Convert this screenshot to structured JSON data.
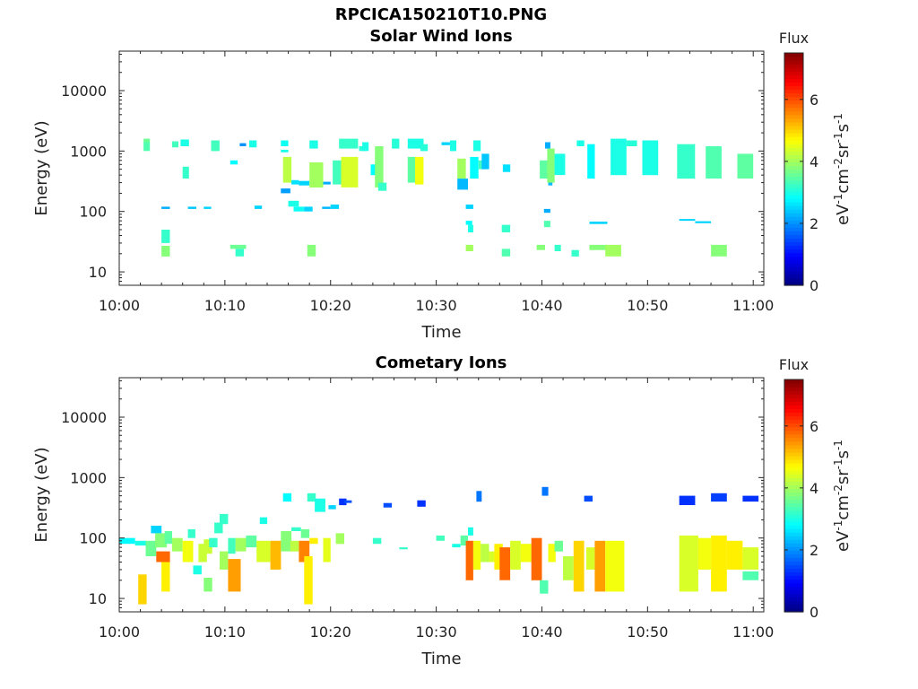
{
  "figure": {
    "title": "RPCICA150210T10.PNG"
  },
  "chart_data": [
    {
      "type": "heatmap",
      "title": "Solar Wind Ions",
      "xlabel": "Time",
      "ylabel": "Energy (eV)",
      "x_range_minutes": [
        0,
        61
      ],
      "x_ticks": [
        "10:00",
        "10:10",
        "10:20",
        "10:30",
        "10:40",
        "10:50",
        "11:00"
      ],
      "y_scale": "log",
      "ylim": [
        6,
        45000
      ],
      "y_ticks": [
        "10",
        "100",
        "1000",
        "10000"
      ],
      "colorbar": {
        "label": "Flux",
        "units": "eV-1cm-2sr-1s-1",
        "range": [
          0,
          7.5
        ],
        "ticks": [
          "0",
          "2",
          "4",
          "6"
        ],
        "colormap": "jet"
      },
      "cells": [
        [
          2.3,
          2.9,
          1400,
          1600,
          3.6
        ],
        [
          2.3,
          2.9,
          1000,
          1400,
          3.4
        ],
        [
          5.0,
          5.6,
          1150,
          1450,
          3.3
        ],
        [
          5.8,
          6.6,
          1200,
          1550,
          3.0
        ],
        [
          6.0,
          6.6,
          350,
          550,
          3.2
        ],
        [
          8.7,
          9.5,
          1000,
          1500,
          3.3
        ],
        [
          10.5,
          11.2,
          600,
          700,
          2.8
        ],
        [
          11.4,
          12.0,
          1200,
          1350,
          2.0
        ],
        [
          12.3,
          13.0,
          1150,
          1500,
          3.0
        ],
        [
          15.3,
          16.0,
          1200,
          1500,
          2.9
        ],
        [
          15.3,
          16.0,
          950,
          1050,
          3.0
        ],
        [
          15.5,
          16.3,
          300,
          800,
          4.2
        ],
        [
          15.3,
          16.2,
          200,
          240,
          2.1
        ],
        [
          16.3,
          17.0,
          280,
          330,
          2.6
        ],
        [
          17.0,
          18.0,
          270,
          320,
          2.5
        ],
        [
          18.0,
          19.3,
          250,
          650,
          4.0
        ],
        [
          19.3,
          20.0,
          280,
          310,
          2.2
        ],
        [
          18.0,
          18.8,
          1100,
          1500,
          3.0
        ],
        [
          20.2,
          21.0,
          280,
          700,
          3.3
        ],
        [
          21.0,
          22.6,
          250,
          800,
          4.4
        ],
        [
          20.8,
          22.6,
          1100,
          1600,
          3.2
        ],
        [
          22.7,
          23.3,
          1000,
          1200,
          3.1
        ],
        [
          23.0,
          23.6,
          1000,
          1400,
          3.0
        ],
        [
          23.8,
          24.6,
          400,
          600,
          2.8
        ],
        [
          24.2,
          25.0,
          250,
          1200,
          3.8
        ],
        [
          24.5,
          25.3,
          220,
          300,
          3.2
        ],
        [
          25.8,
          26.5,
          1100,
          1600,
          3.1
        ],
        [
          27.3,
          28.0,
          300,
          800,
          3.5
        ],
        [
          28.0,
          28.8,
          280,
          800,
          4.6
        ],
        [
          27.3,
          28.8,
          1100,
          1600,
          3.0
        ],
        [
          28.5,
          29.2,
          1000,
          1300,
          3.1
        ],
        [
          30.5,
          31.3,
          1250,
          1400,
          2.5
        ],
        [
          31.3,
          31.9,
          1000,
          1500,
          3.0
        ],
        [
          32.0,
          32.8,
          350,
          750,
          4.0
        ],
        [
          32.0,
          33.0,
          230,
          350,
          2.3
        ],
        [
          33.2,
          34.0,
          350,
          800,
          2.8
        ],
        [
          33.5,
          34.2,
          1000,
          1500,
          3.0
        ],
        [
          34.0,
          34.6,
          500,
          700,
          3.3
        ],
        [
          34.3,
          35.0,
          500,
          900,
          2.4
        ],
        [
          36.3,
          37.0,
          450,
          600,
          2.6
        ],
        [
          39.8,
          40.6,
          350,
          700,
          3.5
        ],
        [
          40.3,
          40.8,
          1100,
          1400,
          2.2
        ],
        [
          40.6,
          41.0,
          270,
          330,
          2.3
        ],
        [
          40.5,
          41.2,
          300,
          1100,
          3.8
        ],
        [
          41.2,
          42.2,
          400,
          900,
          3.0
        ],
        [
          43.3,
          44.0,
          1200,
          1500,
          3.0
        ],
        [
          44.3,
          45.0,
          350,
          1300,
          2.8
        ],
        [
          46.5,
          48.0,
          400,
          1600,
          3.0
        ],
        [
          48.0,
          49.0,
          1200,
          1500,
          3.1
        ],
        [
          49.5,
          51.0,
          400,
          1500,
          3.0
        ],
        [
          52.8,
          54.5,
          350,
          1300,
          3.2
        ],
        [
          55.5,
          57.0,
          350,
          1200,
          3.4
        ],
        [
          58.5,
          60.0,
          350,
          900,
          3.5
        ],
        [
          4.0,
          4.8,
          110,
          120,
          2.2
        ],
        [
          6.5,
          7.3,
          110,
          120,
          2.4
        ],
        [
          8.0,
          8.7,
          110,
          120,
          2.5
        ],
        [
          12.8,
          13.5,
          110,
          125,
          2.5
        ],
        [
          16.0,
          17.0,
          120,
          150,
          3.0
        ],
        [
          16.5,
          17.5,
          100,
          120,
          2.9
        ],
        [
          17.5,
          18.3,
          100,
          120,
          2.5
        ],
        [
          19.2,
          20.0,
          110,
          120,
          2.3
        ],
        [
          20.0,
          20.8,
          110,
          130,
          2.5
        ],
        [
          32.8,
          33.5,
          110,
          130,
          2.5
        ],
        [
          40.2,
          40.8,
          95,
          110,
          2.2
        ],
        [
          44.5,
          46.2,
          62,
          68,
          2.5
        ],
        [
          53.0,
          54.5,
          70,
          75,
          2.5
        ],
        [
          54.5,
          56.0,
          64,
          69,
          2.5
        ],
        [
          4.0,
          4.8,
          30,
          50,
          3.2
        ],
        [
          33.0,
          33.5,
          45,
          60,
          3.0
        ],
        [
          32.8,
          33.4,
          60,
          70,
          2.8
        ],
        [
          36.2,
          37.0,
          45,
          60,
          3.2
        ],
        [
          40.2,
          40.8,
          55,
          70,
          3.4
        ],
        [
          4.0,
          4.8,
          18,
          27,
          3.8
        ],
        [
          10.5,
          12.0,
          24,
          28,
          3.6
        ],
        [
          11.0,
          11.8,
          18,
          24,
          3.2
        ],
        [
          17.8,
          18.6,
          18,
          28,
          3.8
        ],
        [
          32.8,
          33.5,
          22,
          28,
          4.0
        ],
        [
          36.2,
          37.0,
          18,
          24,
          3.4
        ],
        [
          39.5,
          40.3,
          23,
          28,
          3.8
        ],
        [
          41.2,
          41.8,
          22,
          28,
          3.2
        ],
        [
          42.8,
          43.5,
          18,
          23,
          3.2
        ],
        [
          44.5,
          46.2,
          23,
          28,
          3.8
        ],
        [
          46.0,
          47.5,
          18,
          28,
          4.0
        ],
        [
          56.0,
          57.5,
          18,
          28,
          3.8
        ]
      ]
    },
    {
      "type": "heatmap",
      "title": "Cometary Ions",
      "xlabel": "Time",
      "ylabel": "Energy (eV)",
      "x_range_minutes": [
        0,
        61
      ],
      "x_ticks": [
        "10:00",
        "10:10",
        "10:20",
        "10:30",
        "10:40",
        "10:50",
        "11:00"
      ],
      "y_scale": "log",
      "ylim": [
        6,
        45000
      ],
      "y_ticks": [
        "10",
        "100",
        "1000",
        "10000"
      ],
      "colorbar": {
        "label": "Flux",
        "units": "eV-1cm-2sr-1s-1",
        "range": [
          0,
          7.5
        ],
        "ticks": [
          "0",
          "2",
          "4",
          "6"
        ],
        "colormap": "jet"
      },
      "cells": [
        [
          0.0,
          1.5,
          80,
          100,
          2.8
        ],
        [
          1.5,
          2.5,
          75,
          90,
          3.0
        ],
        [
          1.8,
          2.6,
          8,
          25,
          5.0
        ],
        [
          2.5,
          3.5,
          50,
          90,
          3.6
        ],
        [
          3.0,
          4.0,
          120,
          160,
          2.5
        ],
        [
          3.4,
          4.5,
          70,
          120,
          3.8
        ],
        [
          3.5,
          4.8,
          40,
          60,
          5.8
        ],
        [
          4.0,
          4.8,
          13,
          40,
          4.8
        ],
        [
          4.3,
          5.0,
          80,
          130,
          3.5
        ],
        [
          5.0,
          6.0,
          60,
          100,
          4.0
        ],
        [
          6.0,
          7.0,
          40,
          90,
          4.6
        ],
        [
          6.5,
          7.2,
          100,
          140,
          3.2
        ],
        [
          7.0,
          7.8,
          25,
          35,
          3.0
        ],
        [
          7.5,
          8.3,
          40,
          80,
          4.3
        ],
        [
          8.0,
          8.8,
          55,
          95,
          4.3
        ],
        [
          8.0,
          8.8,
          13,
          22,
          3.8
        ],
        [
          8.5,
          9.3,
          70,
          100,
          3.2
        ],
        [
          9.0,
          9.8,
          120,
          180,
          3.2
        ],
        [
          9.5,
          10.3,
          30,
          60,
          4.0
        ],
        [
          10.3,
          11.0,
          55,
          100,
          3.3
        ],
        [
          9.5,
          10.3,
          170,
          250,
          3.2
        ],
        [
          10.3,
          11.5,
          13,
          45,
          5.4
        ],
        [
          11.0,
          12.0,
          60,
          100,
          4.0
        ],
        [
          12.0,
          13.0,
          70,
          110,
          3.5
        ],
        [
          13.0,
          14.3,
          40,
          90,
          4.4
        ],
        [
          13.3,
          14.0,
          170,
          220,
          3.0
        ],
        [
          14.3,
          15.3,
          30,
          90,
          5.2
        ],
        [
          15.3,
          16.3,
          60,
          130,
          3.8
        ],
        [
          15.5,
          16.3,
          400,
          550,
          2.8
        ],
        [
          16.2,
          17.0,
          60,
          90,
          4.2
        ],
        [
          16.3,
          17.2,
          130,
          150,
          3.2
        ],
        [
          17.0,
          18.0,
          40,
          90,
          5.6
        ],
        [
          17.2,
          18.0,
          100,
          140,
          3.6
        ],
        [
          17.5,
          18.3,
          8,
          50,
          4.8
        ],
        [
          17.8,
          18.6,
          400,
          550,
          3.2
        ],
        [
          18.0,
          18.8,
          80,
          100,
          4.8
        ],
        [
          18.5,
          19.5,
          270,
          450,
          3.0
        ],
        [
          19.3,
          20.0,
          40,
          100,
          4.5
        ],
        [
          19.8,
          20.5,
          300,
          350,
          2.5
        ],
        [
          20.5,
          21.3,
          80,
          120,
          4.0
        ],
        [
          20.8,
          21.5,
          350,
          450,
          1.3
        ],
        [
          21.3,
          22.0,
          380,
          420,
          1.5
        ],
        [
          25.0,
          25.8,
          320,
          380,
          1.5
        ],
        [
          28.2,
          29.0,
          330,
          420,
          1.3
        ],
        [
          24.0,
          24.8,
          80,
          100,
          3.2
        ],
        [
          26.5,
          27.3,
          65,
          70,
          3.2
        ],
        [
          30.0,
          30.8,
          90,
          110,
          3.3
        ],
        [
          31.5,
          32.3,
          70,
          80,
          3.0
        ],
        [
          32.3,
          33.0,
          75,
          110,
          3.5
        ],
        [
          32.8,
          33.5,
          20,
          90,
          5.8
        ],
        [
          33.0,
          33.5,
          110,
          150,
          3.0
        ],
        [
          33.5,
          34.2,
          30,
          90,
          4.6
        ],
        [
          33.8,
          34.3,
          400,
          600,
          1.8
        ],
        [
          34.2,
          35.0,
          40,
          80,
          4.2
        ],
        [
          35.0,
          35.8,
          40,
          60,
          4.4
        ],
        [
          35.5,
          36.3,
          30,
          80,
          4.8
        ],
        [
          36.0,
          37.0,
          20,
          70,
          5.8
        ],
        [
          37.0,
          38.0,
          30,
          90,
          4.4
        ],
        [
          38.0,
          39.0,
          40,
          80,
          4.6
        ],
        [
          39.0,
          40.0,
          20,
          100,
          5.8
        ],
        [
          39.8,
          40.6,
          12,
          20,
          3.4
        ],
        [
          40.0,
          40.6,
          500,
          700,
          1.8
        ],
        [
          40.6,
          41.3,
          40,
          80,
          4.6
        ],
        [
          41.2,
          42.0,
          60,
          90,
          3.6
        ],
        [
          42.0,
          43.0,
          20,
          50,
          4.2
        ],
        [
          43.0,
          44.0,
          13,
          90,
          5.0
        ],
        [
          44.0,
          44.8,
          400,
          500,
          1.5
        ],
        [
          44.2,
          45.0,
          30,
          70,
          4.4
        ],
        [
          45.0,
          46.0,
          13,
          90,
          5.4
        ],
        [
          46.0,
          47.8,
          13,
          90,
          4.6
        ],
        [
          53.0,
          54.5,
          350,
          500,
          1.3
        ],
        [
          53.0,
          54.8,
          13,
          110,
          4.4
        ],
        [
          54.8,
          56.0,
          30,
          100,
          4.6
        ],
        [
          56.0,
          57.5,
          13,
          110,
          4.8
        ],
        [
          56.0,
          57.5,
          400,
          550,
          1.4
        ],
        [
          57.5,
          59.0,
          30,
          90,
          4.8
        ],
        [
          59.0,
          60.5,
          30,
          70,
          4.4
        ],
        [
          59.0,
          60.5,
          20,
          28,
          3.4
        ],
        [
          59.0,
          60.5,
          400,
          500,
          1.3
        ]
      ]
    }
  ]
}
